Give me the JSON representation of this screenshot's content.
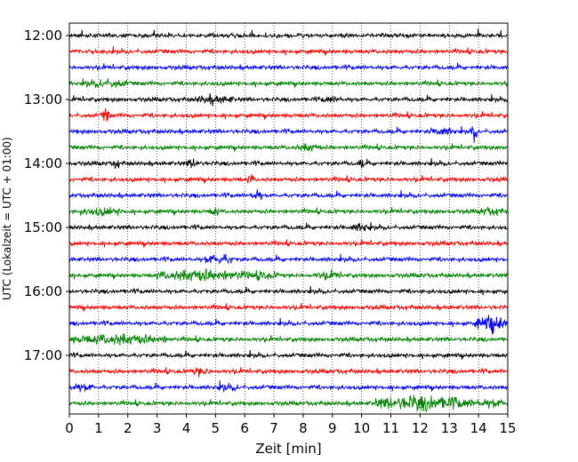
{
  "chart_data": {
    "type": "line",
    "title": "",
    "xlabel": "Zeit  [min]",
    "ylabel": "UTC (Lokalzeit = UTC + 01:00)",
    "xlim": [
      0,
      15
    ],
    "x_ticks": [
      "0",
      "1",
      "2",
      "3",
      "4",
      "5",
      "6",
      "7",
      "8",
      "9",
      "10",
      "11",
      "12",
      "13",
      "14",
      "15"
    ],
    "y_ticks": [
      "12:00",
      "13:00",
      "14:00",
      "15:00",
      "16:00",
      "17:00"
    ],
    "grid": "vertical dotted lines at every minute",
    "legend": "none",
    "trace_interval_min": 15,
    "trace_color_cycle": [
      "#000000",
      "#ff0000",
      "#0000ff",
      "#008000"
    ],
    "series": [
      {
        "start": "12:00",
        "color": "#000000",
        "bursts": []
      },
      {
        "start": "12:15",
        "color": "#ff0000",
        "bursts": []
      },
      {
        "start": "12:30",
        "color": "#0000ff",
        "bursts": []
      },
      {
        "start": "12:45",
        "color": "#008000",
        "bursts": [
          [
            0.5,
            2.0,
            0.9
          ]
        ]
      },
      {
        "start": "13:00",
        "color": "#000000",
        "bursts": [
          [
            4.3,
            5.6,
            0.9
          ],
          [
            8.6,
            9.3,
            0.7
          ]
        ]
      },
      {
        "start": "13:15",
        "color": "#ff0000",
        "bursts": [
          [
            1.1,
            1.4,
            1.6
          ]
        ]
      },
      {
        "start": "13:30",
        "color": "#0000ff",
        "bursts": [
          [
            12.3,
            13.2,
            1.0
          ],
          [
            13.75,
            13.95,
            2.6
          ]
        ]
      },
      {
        "start": "13:45",
        "color": "#008000",
        "bursts": [
          [
            7.8,
            8.6,
            0.9
          ]
        ]
      },
      {
        "start": "14:00",
        "color": "#000000",
        "bursts": [
          [
            1.5,
            1.7,
            1.3
          ],
          [
            4.0,
            4.5,
            1.0
          ],
          [
            9.9,
            10.1,
            1.1
          ]
        ]
      },
      {
        "start": "14:15",
        "color": "#ff0000",
        "bursts": [
          [
            6.1,
            6.3,
            1.4
          ]
        ]
      },
      {
        "start": "14:30",
        "color": "#0000ff",
        "bursts": [
          [
            6.2,
            6.6,
            1.6
          ]
        ]
      },
      {
        "start": "14:45",
        "color": "#008000",
        "bursts": [
          [
            0.3,
            1.8,
            0.8
          ],
          [
            4.8,
            5.1,
            1.3
          ],
          [
            14.0,
            14.8,
            0.8
          ]
        ]
      },
      {
        "start": "15:00",
        "color": "#000000",
        "bursts": [
          [
            9.6,
            10.3,
            1.0
          ]
        ]
      },
      {
        "start": "15:15",
        "color": "#ff0000",
        "bursts": []
      },
      {
        "start": "15:30",
        "color": "#0000ff",
        "bursts": [
          [
            4.6,
            5.6,
            1.3
          ]
        ]
      },
      {
        "start": "15:45",
        "color": "#008000",
        "bursts": [
          [
            3.0,
            6.0,
            1.6
          ],
          [
            6.0,
            7.2,
            1.0
          ],
          [
            8.4,
            9.3,
            0.8
          ]
        ]
      },
      {
        "start": "16:00",
        "color": "#000000",
        "bursts": []
      },
      {
        "start": "16:15",
        "color": "#ff0000",
        "bursts": []
      },
      {
        "start": "16:30",
        "color": "#0000ff",
        "bursts": [
          [
            13.9,
            15.0,
            2.4
          ]
        ]
      },
      {
        "start": "16:45",
        "color": "#008000",
        "bursts": [
          [
            0.0,
            3.4,
            1.4
          ]
        ]
      },
      {
        "start": "17:00",
        "color": "#000000",
        "bursts": []
      },
      {
        "start": "17:15",
        "color": "#ff0000",
        "bursts": [
          [
            4.1,
            4.8,
            0.8
          ]
        ]
      },
      {
        "start": "17:30",
        "color": "#0000ff",
        "bursts": [
          [
            0.0,
            0.8,
            0.9
          ],
          [
            5.0,
            5.8,
            0.7
          ]
        ]
      },
      {
        "start": "17:45",
        "color": "#008000",
        "bursts": [
          [
            10.4,
            13.8,
            2.0
          ],
          [
            13.8,
            15.0,
            1.0
          ]
        ]
      }
    ]
  }
}
